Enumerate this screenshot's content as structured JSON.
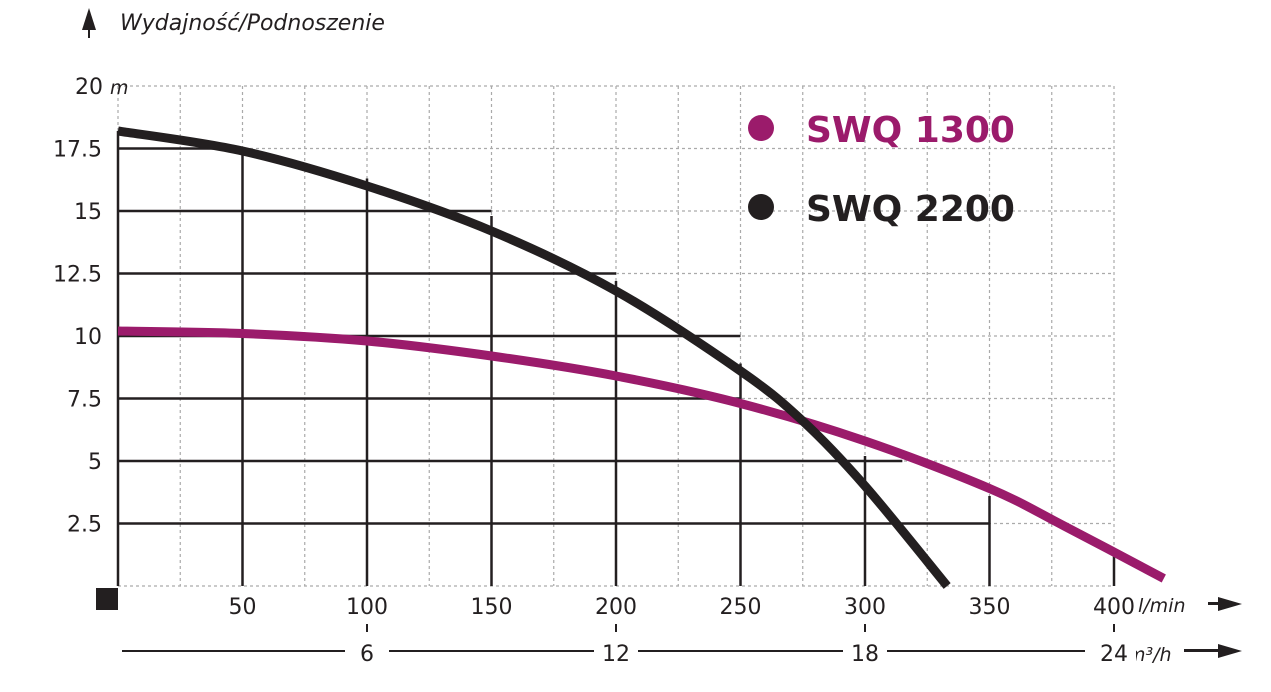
{
  "chart_data": {
    "type": "line",
    "title": "Wydajność/Podnoszenie",
    "xlabel": "l/min",
    "x2label": "m³/h",
    "ylabel": "m",
    "xlim": [
      0,
      400
    ],
    "ylim": [
      0,
      20
    ],
    "grid": true,
    "legend_position": "top-right",
    "x_ticks": [
      "50",
      "100",
      "150",
      "200",
      "250",
      "300",
      "350",
      "400"
    ],
    "x_tick_values": [
      50,
      100,
      150,
      200,
      250,
      300,
      350,
      400
    ],
    "x2_ticks": [
      "6",
      "12",
      "18",
      "24"
    ],
    "x2_tick_values": [
      6,
      12,
      18,
      24
    ],
    "y_ticks": [
      "2.5",
      "5",
      "7.5",
      "10",
      "12.5",
      "15",
      "17.5",
      "20"
    ],
    "y_tick_values": [
      2.5,
      5,
      7.5,
      10,
      12.5,
      15,
      17.5,
      20
    ],
    "series": [
      {
        "name": "SWQ 1300",
        "color": "#9b1b6b",
        "x": [
          0,
          50,
          100,
          150,
          200,
          250,
          300,
          350,
          380,
          420
        ],
        "y": [
          10.2,
          10.1,
          9.8,
          9.2,
          8.4,
          7.3,
          5.8,
          3.9,
          2.4,
          0.3
        ]
      },
      {
        "name": "SWQ 2200",
        "color": "#231f20",
        "x": [
          0,
          50,
          100,
          150,
          200,
          250,
          275,
          300,
          333
        ],
        "y": [
          18.2,
          17.4,
          16.0,
          14.2,
          11.8,
          8.6,
          6.6,
          4.0,
          0
        ]
      }
    ]
  }
}
